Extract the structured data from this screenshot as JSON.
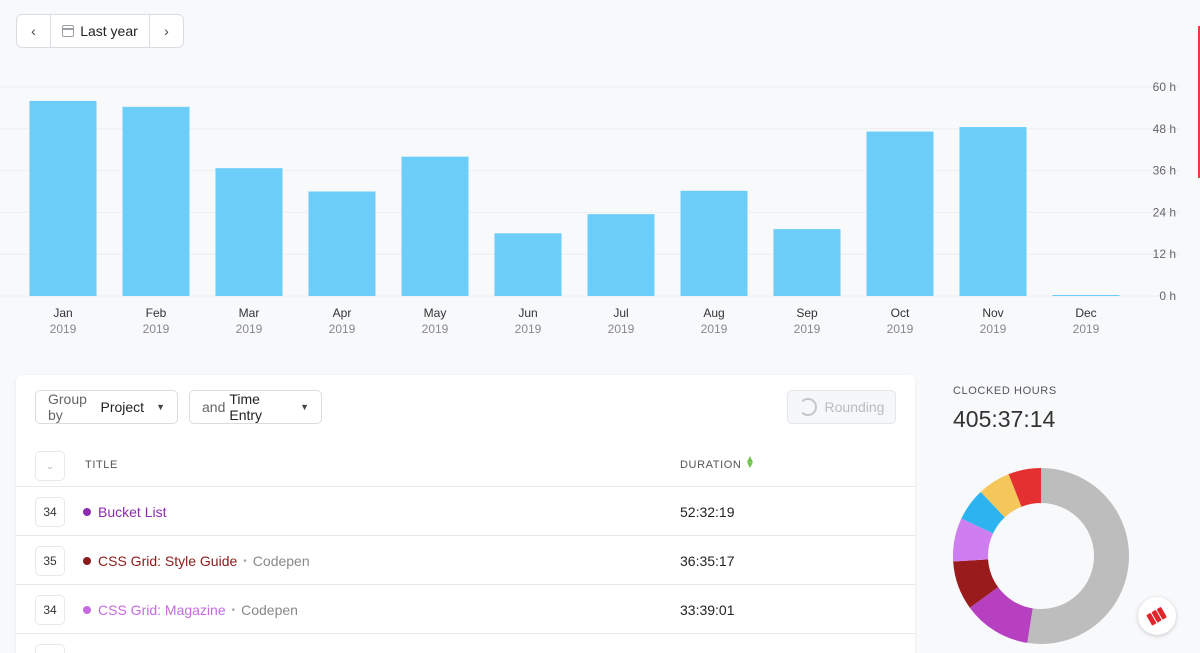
{
  "range": {
    "prev_icon": "chevron-left-icon",
    "label": "Last year",
    "calendar_icon": "calendar-icon",
    "next_icon": "chevron-right-icon",
    "prev_glyph": "‹",
    "next_glyph": "›"
  },
  "chart_data": {
    "type": "bar",
    "categories": [
      "Jan",
      "Feb",
      "Mar",
      "Apr",
      "May",
      "Jun",
      "Jul",
      "Aug",
      "Sep",
      "Oct",
      "Nov",
      "Dec"
    ],
    "sublabels": [
      "2019",
      "2019",
      "2019",
      "2019",
      "2019",
      "2019",
      "2019",
      "2019",
      "2019",
      "2019",
      "2019",
      "2019"
    ],
    "values": [
      56,
      54.3,
      36.7,
      30,
      40,
      18,
      23.5,
      30.2,
      19.2,
      47.2,
      48.5,
      0.2
    ],
    "yticks": [
      "60 h",
      "48 h",
      "36 h",
      "24 h",
      "12 h",
      "0 h"
    ],
    "ylim": [
      0,
      60
    ],
    "grid": true,
    "bar_color": "#6ccdf8"
  },
  "toolbar": {
    "group_prefix": "Group by",
    "group_value": "Project",
    "and_prefix": "and",
    "and_value": "Time Entry",
    "rounding_label": "Rounding",
    "rounding_icon": "rounding-clock-icon"
  },
  "table": {
    "headers": {
      "title": "TITLE",
      "duration": "DURATION"
    },
    "select_all_glyph": "⌄",
    "sort_glyph": "⌃⌄",
    "rows": [
      {
        "count": "34",
        "title": "Bucket List",
        "client": "",
        "duration": "52:32:19",
        "color": "#8e2bb0"
      },
      {
        "count": "35",
        "title": "CSS Grid: Style Guide",
        "client": "Codepen",
        "duration": "36:35:17",
        "color": "#8a1a1a"
      },
      {
        "count": "34",
        "title": "CSS Grid: Magazine",
        "client": "Codepen",
        "duration": "33:39:01",
        "color": "#c56be0"
      }
    ],
    "separator": "•"
  },
  "summary": {
    "label": "CLOCKED HOURS",
    "value": "405:37:14",
    "donut": [
      {
        "value": 52.5,
        "color": "#bdbdbd"
      },
      {
        "value": 12.5,
        "color": "#b640c0"
      },
      {
        "value": 9,
        "color": "#9a1b1b"
      },
      {
        "value": 8,
        "color": "#cf7ef0"
      },
      {
        "value": 6,
        "color": "#2db4f0"
      },
      {
        "value": 6,
        "color": "#f5c65a"
      },
      {
        "value": 6,
        "color": "#e43030"
      }
    ]
  },
  "fab_icon": "toggl-logo-icon"
}
